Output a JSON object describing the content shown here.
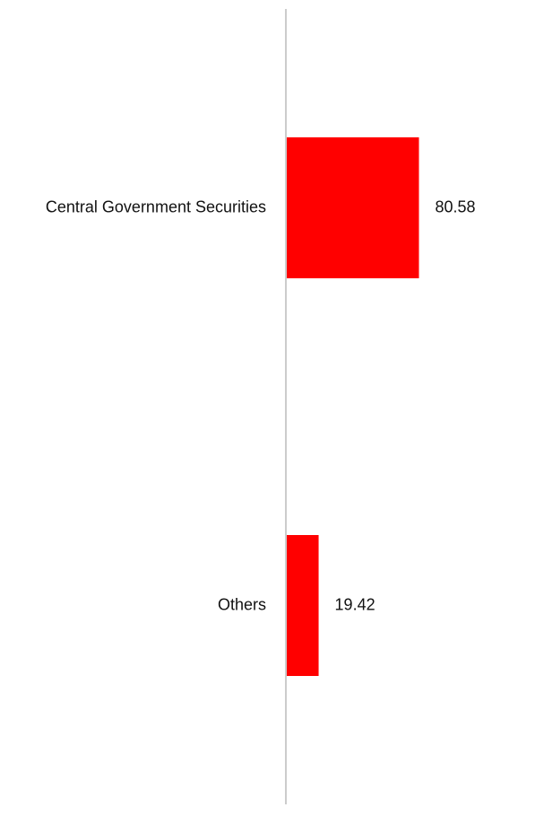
{
  "chart_data": {
    "type": "bar",
    "orientation": "horizontal",
    "categories": [
      "Central Government Securities",
      "Others"
    ],
    "values": [
      80.58,
      19.42
    ],
    "value_labels": [
      "80.58",
      "19.42"
    ],
    "title": "",
    "xlabel": "",
    "ylabel": "",
    "xlim": [
      0,
      118
    ],
    "grid": false,
    "legend": "none",
    "bar_color": "#ff0000",
    "axis_color": "#cccccc"
  }
}
